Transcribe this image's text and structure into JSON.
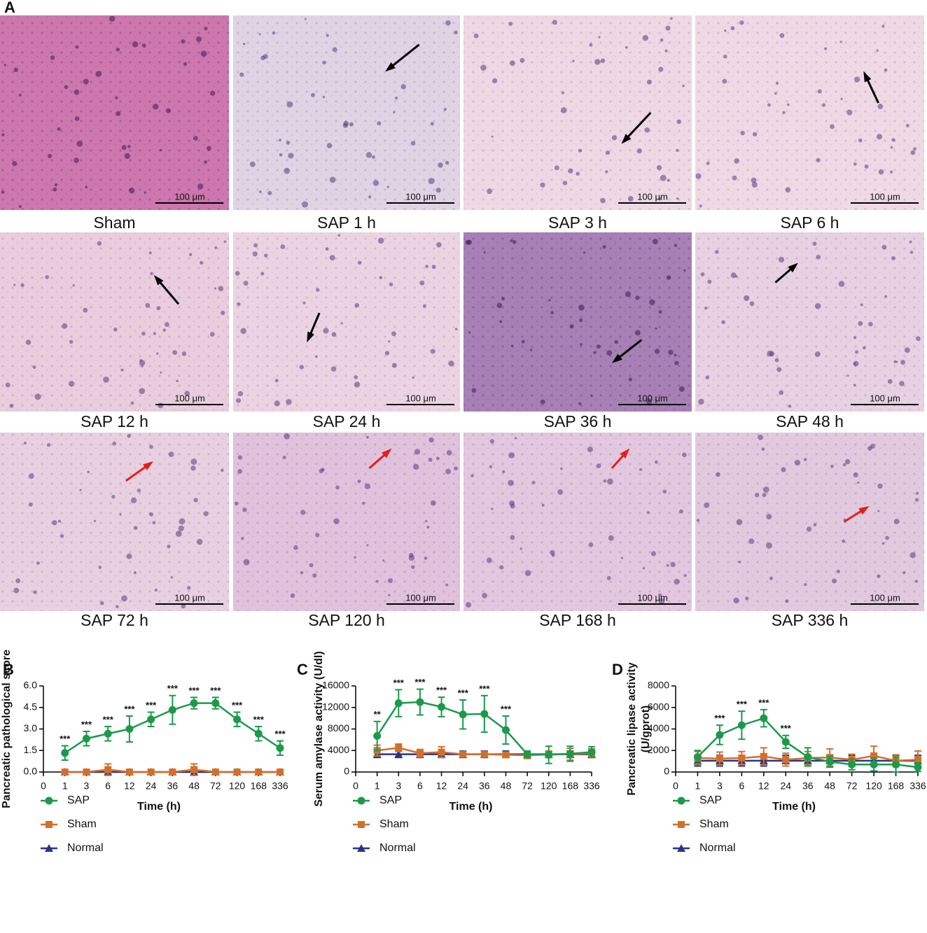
{
  "panel_a": {
    "label": "A",
    "scale_bar": "100 μm",
    "captions": [
      "Sham",
      "SAP 1 h",
      "SAP 3 h",
      "SAP 6 h",
      "SAP 12 h",
      "SAP 24 h",
      "SAP 36 h",
      "SAP 48 h",
      "SAP 72 h",
      "SAP 120 h",
      "SAP 168 h",
      "SAP 336 h"
    ]
  },
  "chart_data": [
    {
      "type": "line",
      "label": "B",
      "ylabel": "Pancreatic pathological score",
      "xlabel": "Time (h)",
      "categories": [
        "0",
        "1",
        "3",
        "6",
        "12",
        "24",
        "36",
        "48",
        "72",
        "120",
        "168",
        "336"
      ],
      "ylim": [
        0,
        6
      ],
      "yticks": [
        {
          "value": 0,
          "label": "0.0"
        },
        1.5,
        {
          "value": 3,
          "label": "3.0"
        },
        4.5,
        {
          "value": 6,
          "label": "6.0"
        }
      ],
      "series": [
        {
          "name": "SAP",
          "color": "#1b9a4b",
          "marker": "circle",
          "values": [
            null,
            1.33,
            2.33,
            2.67,
            3.0,
            3.67,
            4.33,
            4.8,
            4.8,
            3.67,
            2.67,
            1.67
          ],
          "errors": [
            null,
            0.5,
            0.5,
            0.5,
            0.9,
            0.5,
            1.0,
            0.4,
            0.4,
            0.5,
            0.5,
            0.5
          ]
        },
        {
          "name": "Sham",
          "color": "#d2702b",
          "marker": "square",
          "values": [
            null,
            0,
            0,
            0.17,
            0,
            0,
            0,
            0.17,
            0,
            0,
            0,
            0
          ],
          "errors": [
            null,
            0,
            0,
            0.4,
            0,
            0,
            0,
            0.4,
            0,
            0,
            0,
            0
          ]
        },
        {
          "name": "Normal",
          "color": "#26358a",
          "marker": "triangle",
          "values": [
            null,
            0,
            0,
            0,
            0,
            0,
            0,
            0,
            0,
            0,
            0,
            0
          ],
          "errors": [
            null,
            0,
            0,
            0,
            0,
            0,
            0,
            0,
            0,
            0,
            0,
            0
          ]
        }
      ],
      "significance": [
        null,
        "***",
        "***",
        "***",
        "***",
        "***",
        "***",
        "***",
        "***",
        "***",
        "***",
        "***"
      ]
    },
    {
      "type": "line",
      "label": "C",
      "ylabel": "Serum amylase activity (U/dl)",
      "xlabel": "Time (h)",
      "categories": [
        "0",
        "1",
        "3",
        "6",
        "12",
        "24",
        "36",
        "48",
        "72",
        "120",
        "168",
        "336"
      ],
      "ylim": [
        0,
        16000
      ],
      "yticks": [
        0,
        4000,
        8000,
        12000,
        16000
      ],
      "series": [
        {
          "name": "SAP",
          "color": "#1b9a4b",
          "marker": "circle",
          "values": [
            null,
            6700,
            12800,
            13000,
            12100,
            10700,
            10800,
            7800,
            3300,
            3200,
            3400,
            3700
          ],
          "errors": [
            null,
            2700,
            2500,
            2400,
            1800,
            2700,
            3400,
            2600,
            600,
            1600,
            1400,
            1000
          ]
        },
        {
          "name": "Sham",
          "color": "#d2702b",
          "marker": "square",
          "values": [
            null,
            4000,
            4500,
            3500,
            3700,
            3300,
            3300,
            3200,
            3100,
            3300,
            3300,
            3500
          ],
          "errors": [
            null,
            1000,
            700,
            700,
            1000,
            500,
            500,
            500,
            600,
            600,
            1100,
            800
          ]
        },
        {
          "name": "Normal",
          "color": "#26358a",
          "marker": "triangle",
          "values": [
            null,
            3300,
            3300,
            3300,
            3300,
            3300,
            3300,
            3300,
            3300,
            3300,
            3300,
            3300
          ],
          "errors": [
            null,
            600,
            600,
            600,
            600,
            600,
            600,
            600,
            600,
            600,
            600,
            600
          ]
        }
      ],
      "significance": [
        null,
        "**",
        "***",
        "***",
        "***",
        "***",
        "***",
        "***",
        null,
        null,
        null,
        null
      ]
    },
    {
      "type": "line",
      "label": "D",
      "ylabel": [
        "Pancreatic lipase activity",
        "(U/gprot)"
      ],
      "xlabel": "Time (h)",
      "categories": [
        "0",
        "1",
        "3",
        "6",
        "12",
        "24",
        "36",
        "48",
        "72",
        "120",
        "168",
        "336"
      ],
      "ylim": [
        0,
        8000
      ],
      "yticks": [
        0,
        2000,
        4000,
        6000,
        8000
      ],
      "series": [
        {
          "name": "SAP",
          "color": "#1b9a4b",
          "marker": "circle",
          "values": [
            null,
            1400,
            3450,
            4350,
            5000,
            2800,
            1400,
            950,
            700,
            700,
            700,
            450
          ],
          "errors": [
            null,
            600,
            900,
            1300,
            800,
            600,
            850,
            500,
            500,
            600,
            700,
            400
          ]
        },
        {
          "name": "Sham",
          "color": "#d2702b",
          "marker": "square",
          "values": [
            null,
            1300,
            1250,
            1300,
            1450,
            1150,
            1300,
            1350,
            1150,
            1500,
            1050,
            1150
          ],
          "errors": [
            null,
            600,
            600,
            600,
            800,
            600,
            600,
            800,
            500,
            900,
            550,
            800
          ]
        },
        {
          "name": "Normal",
          "color": "#26358a",
          "marker": "triangle",
          "values": [
            null,
            1050,
            1050,
            1050,
            1050,
            1050,
            1050,
            1050,
            1050,
            1050,
            1050,
            1050
          ],
          "errors": [
            null,
            500,
            500,
            500,
            500,
            500,
            500,
            500,
            500,
            500,
            500,
            500
          ]
        }
      ],
      "significance": [
        null,
        null,
        "***",
        "***",
        "***",
        "***",
        null,
        null,
        null,
        null,
        null,
        null
      ]
    }
  ]
}
